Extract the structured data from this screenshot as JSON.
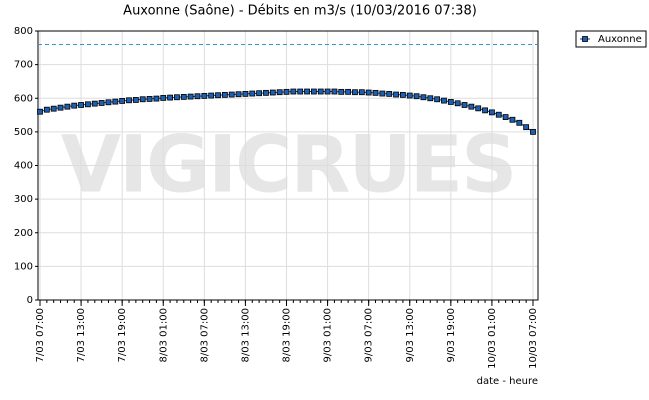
{
  "chart_data": {
    "type": "line",
    "title": "Auxonne (Saône) - Débits en m3/s (10/03/2016 07:38)",
    "watermark": "VIGICRUES",
    "x_label": "date - heure",
    "categories": [
      "7/03 07:00",
      null,
      null,
      null,
      null,
      null,
      "7/03 13:00",
      null,
      null,
      null,
      null,
      null,
      "7/03 19:00",
      null,
      null,
      null,
      null,
      null,
      "8/03 01:00",
      null,
      null,
      null,
      null,
      null,
      "8/03 07:00",
      null,
      null,
      null,
      null,
      null,
      "8/03 13:00",
      null,
      null,
      null,
      null,
      null,
      "8/03 19:00",
      null,
      null,
      null,
      null,
      null,
      "9/03 01:00",
      null,
      null,
      null,
      null,
      null,
      "9/03 07:00",
      null,
      null,
      null,
      null,
      null,
      "9/03 13:00",
      null,
      null,
      null,
      null,
      null,
      "9/03 19:00",
      null,
      null,
      null,
      null,
      null,
      "10/03 01:00",
      null,
      null,
      null,
      null,
      null,
      "10/03 07:00"
    ],
    "series": [
      {
        "name": "Auxonne",
        "color": "#0b3a80",
        "values": [
          560,
          566,
          569,
          572,
          575,
          578,
          580,
          582,
          584,
          586,
          588,
          590,
          592,
          594,
          595,
          597,
          598,
          599,
          601,
          602,
          603,
          604,
          605,
          606,
          607,
          608,
          609,
          610,
          611,
          612,
          613,
          614,
          615,
          616,
          617,
          618,
          619,
          620,
          620,
          620,
          620,
          620,
          620,
          620,
          619,
          619,
          618,
          618,
          617,
          616,
          614,
          613,
          611,
          610,
          608,
          606,
          603,
          600,
          597,
          593,
          589,
          585,
          580,
          575,
          570,
          564,
          558,
          551,
          544,
          536,
          527,
          514,
          500
        ]
      }
    ],
    "reference_line": 760,
    "ylim": [
      0,
      800
    ],
    "yticks": [
      0,
      100,
      200,
      300,
      400,
      500,
      600,
      700,
      800
    ],
    "grid": true,
    "legend": "top-right"
  }
}
